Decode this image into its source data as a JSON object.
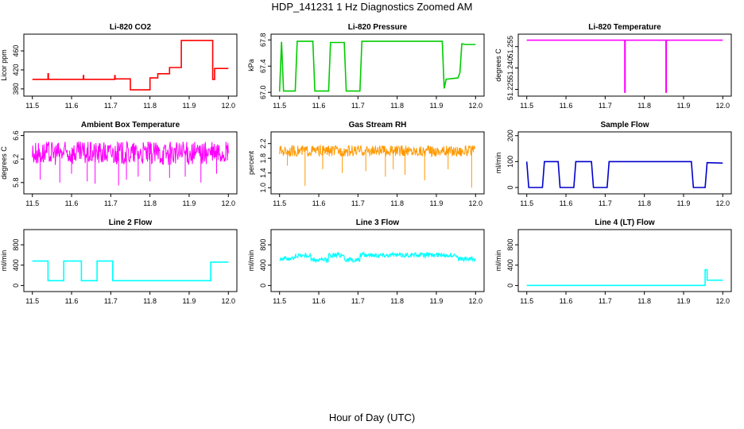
{
  "title": "HDP_141231  1 Hz Diagnostics Zoomed AM",
  "xlabel": "Hour of Day (UTC)",
  "chart_data": [
    {
      "type": "line",
      "title": "Li-820 CO2",
      "ylabel": "Licor ppm",
      "color": "#ff0000",
      "xlim": [
        11.5,
        12.0
      ],
      "ylim": [
        370,
        490
      ],
      "xticks": [
        "11.5",
        "11.6",
        "11.7",
        "11.8",
        "11.9",
        "12.0"
      ],
      "yticks": [
        "380",
        "420",
        "460"
      ],
      "series": [
        {
          "x": [
            11.5,
            11.54,
            11.54,
            11.541,
            11.541,
            11.63,
            11.63,
            11.631,
            11.631,
            11.71,
            11.71,
            11.711,
            11.711,
            11.75,
            11.75,
            11.8,
            11.8,
            11.82,
            11.82,
            11.85,
            11.85,
            11.88,
            11.88,
            11.96,
            11.96,
            11.965,
            11.965,
            12.0
          ],
          "y": [
            400,
            400,
            412,
            412,
            400,
            400,
            408,
            408,
            400,
            400,
            408,
            408,
            401,
            401,
            378,
            378,
            403,
            403,
            412,
            412,
            425,
            425,
            482,
            482,
            400,
            400,
            423,
            423
          ]
        }
      ]
    },
    {
      "type": "line",
      "title": "Li-820 Pressure",
      "ylabel": "kPa",
      "color": "#00cc00",
      "xlim": [
        11.5,
        12.0
      ],
      "ylim": [
        66.98,
        67.85
      ],
      "xticks": [
        "11.5",
        "11.6",
        "11.7",
        "11.8",
        "11.9",
        "12.0"
      ],
      "yticks": [
        "67.0",
        "67.4",
        "67.8"
      ],
      "series": [
        {
          "x": [
            11.5,
            11.505,
            11.51,
            11.54,
            11.545,
            11.585,
            11.59,
            11.625,
            11.63,
            11.665,
            11.67,
            11.705,
            11.71,
            11.915,
            11.92,
            11.925,
            11.955,
            11.96,
            11.965,
            11.975,
            12.0
          ],
          "y": [
            67.01,
            67.77,
            67.02,
            67.02,
            67.78,
            67.78,
            67.02,
            67.02,
            67.76,
            67.76,
            67.02,
            67.02,
            67.78,
            67.78,
            67.06,
            67.2,
            67.22,
            67.3,
            67.74,
            67.73,
            67.73
          ]
        }
      ]
    },
    {
      "type": "line",
      "title": "Li-820 Temperature",
      "ylabel": "degrees C",
      "color": "#ff00ff",
      "xlim": [
        11.5,
        12.0
      ],
      "ylim": [
        51.222,
        51.262
      ],
      "xticks": [
        "11.5",
        "11.6",
        "11.7",
        "11.8",
        "11.9",
        "12.0"
      ],
      "yticks": [
        "51.225",
        "51.240",
        "51.255"
      ],
      "series": [
        {
          "x": [
            11.5,
            11.75,
            11.75,
            11.751,
            11.751,
            11.855,
            11.855,
            11.856,
            11.856,
            12.0
          ],
          "y": [
            51.2595,
            51.2595,
            51.223,
            51.223,
            51.2595,
            51.2595,
            51.223,
            51.223,
            51.2595,
            51.2595
          ]
        }
      ]
    },
    {
      "type": "line",
      "title": "Ambient Box Temperature",
      "ylabel": "degrees C",
      "color": "#ff00ff",
      "xlim": [
        11.5,
        12.0
      ],
      "ylim": [
        5.65,
        6.62
      ],
      "xticks": [
        "11.5",
        "11.6",
        "11.7",
        "11.8",
        "11.9",
        "12.0"
      ],
      "yticks": [
        "5.8",
        "6.2",
        "6.6"
      ],
      "series": [
        {
          "x": [
            11.5,
            11.55,
            11.6,
            11.65,
            11.7,
            11.75,
            11.8,
            11.85,
            11.9,
            11.95,
            12.0
          ],
          "y": [
            6.3,
            6.3,
            6.3,
            6.3,
            6.3,
            6.3,
            6.3,
            6.3,
            6.3,
            6.3,
            6.3
          ],
          "band_low": [
            6.1,
            6.1,
            6.1,
            6.1,
            6.1,
            6.1,
            6.1,
            6.1,
            6.1,
            6.1,
            6.1
          ],
          "band_high": [
            6.5,
            6.5,
            6.5,
            6.5,
            6.5,
            6.5,
            6.5,
            6.5,
            6.5,
            6.5,
            6.5
          ],
          "spikes_x": [
            11.52,
            11.57,
            11.6,
            11.64,
            11.66,
            11.72,
            11.74,
            11.77,
            11.8,
            11.85,
            11.89,
            11.93,
            11.97
          ],
          "spikes_y": [
            5.85,
            5.8,
            5.95,
            5.82,
            5.78,
            5.75,
            5.85,
            5.9,
            5.82,
            5.88,
            5.9,
            5.8,
            5.95
          ]
        }
      ]
    },
    {
      "type": "line",
      "title": "Gas Stream RH",
      "ylabel": "percent",
      "color": "#ff9900",
      "xlim": [
        11.5,
        12.0
      ],
      "ylim": [
        0.9,
        2.45
      ],
      "xticks": [
        "11.5",
        "11.6",
        "11.7",
        "11.8",
        "11.9",
        "12.0"
      ],
      "yticks": [
        "1.0",
        "1.4",
        "1.8",
        "2.2"
      ],
      "series": [
        {
          "x": [
            11.5,
            11.55,
            11.6,
            11.65,
            11.7,
            11.75,
            11.8,
            11.85,
            11.9,
            11.95,
            12.0
          ],
          "y": [
            2.0,
            2.0,
            2.0,
            2.0,
            2.0,
            2.0,
            2.0,
            2.0,
            2.0,
            2.0,
            2.0
          ],
          "band_low": [
            1.85,
            1.85,
            1.85,
            1.85,
            1.85,
            1.85,
            1.85,
            1.85,
            1.85,
            1.85,
            1.85
          ],
          "band_high": [
            2.15,
            2.15,
            2.15,
            2.15,
            2.15,
            2.15,
            2.15,
            2.15,
            2.15,
            2.15,
            2.15
          ],
          "spikes_x": [
            11.52,
            11.565,
            11.61,
            11.66,
            11.72,
            11.77,
            11.79,
            11.82,
            11.87,
            11.93,
            11.99
          ],
          "spikes_y": [
            1.6,
            1.05,
            1.5,
            1.4,
            1.45,
            1.3,
            1.5,
            1.35,
            1.2,
            1.5,
            1.0
          ]
        }
      ]
    },
    {
      "type": "line",
      "title": "Sample Flow",
      "ylabel": "ml/min",
      "color": "#0000cc",
      "xlim": [
        11.5,
        12.0
      ],
      "ylim": [
        -15,
        205
      ],
      "xticks": [
        "11.5",
        "11.6",
        "11.7",
        "11.8",
        "11.9",
        "12.0"
      ],
      "yticks": [
        "0",
        "100",
        "200"
      ],
      "series": [
        {
          "x": [
            11.5,
            11.505,
            11.51,
            11.54,
            11.545,
            11.58,
            11.585,
            11.62,
            11.625,
            11.665,
            11.67,
            11.705,
            11.71,
            11.92,
            11.925,
            11.955,
            11.96,
            12.0
          ],
          "y": [
            100,
            0,
            0,
            0,
            100,
            100,
            0,
            0,
            100,
            100,
            0,
            0,
            100,
            100,
            0,
            0,
            96,
            94
          ]
        }
      ]
    },
    {
      "type": "line",
      "title": "Line 2 Flow",
      "ylabel": "ml/min",
      "color": "#00ffff",
      "xlim": [
        11.5,
        12.0
      ],
      "ylim": [
        -70,
        1050
      ],
      "xticks": [
        "11.5",
        "11.6",
        "11.7",
        "11.8",
        "11.9",
        "12.0"
      ],
      "yticks": [
        "0",
        "400",
        "800"
      ],
      "series": [
        {
          "x": [
            11.5,
            11.54,
            11.54,
            11.58,
            11.58,
            11.625,
            11.625,
            11.665,
            11.665,
            11.705,
            11.705,
            11.955,
            11.955,
            12.0
          ],
          "y": [
            480,
            480,
            95,
            95,
            480,
            480,
            95,
            95,
            480,
            480,
            95,
            95,
            460,
            460
          ]
        }
      ]
    },
    {
      "type": "line",
      "title": "Line 3 Flow",
      "ylabel": "ml/min",
      "color": "#00ffff",
      "xlim": [
        11.5,
        12.0
      ],
      "ylim": [
        -70,
        1050
      ],
      "xticks": [
        "11.5",
        "11.6",
        "11.7",
        "11.8",
        "11.9",
        "12.0"
      ],
      "yticks": [
        "0",
        "400",
        "800"
      ],
      "series": [
        {
          "x": [
            11.5,
            11.54,
            11.54,
            11.58,
            11.58,
            11.625,
            11.625,
            11.665,
            11.665,
            11.705,
            11.705,
            11.955,
            11.955,
            12.0
          ],
          "y": [
            530,
            530,
            590,
            590,
            500,
            500,
            600,
            600,
            500,
            500,
            600,
            600,
            520,
            520
          ],
          "band_half": 45
        }
      ]
    },
    {
      "type": "line",
      "title": "Line 4 (LT) Flow",
      "ylabel": "ml/min",
      "color": "#00ffff",
      "xlim": [
        11.5,
        12.0
      ],
      "ylim": [
        -70,
        1050
      ],
      "xticks": [
        "11.5",
        "11.6",
        "11.7",
        "11.8",
        "11.9",
        "12.0"
      ],
      "yticks": [
        "0",
        "400",
        "800"
      ],
      "series": [
        {
          "x": [
            11.5,
            11.955,
            11.955,
            11.96,
            11.96,
            12.0
          ],
          "y": [
            2,
            2,
            310,
            310,
            105,
            105
          ]
        }
      ]
    }
  ]
}
